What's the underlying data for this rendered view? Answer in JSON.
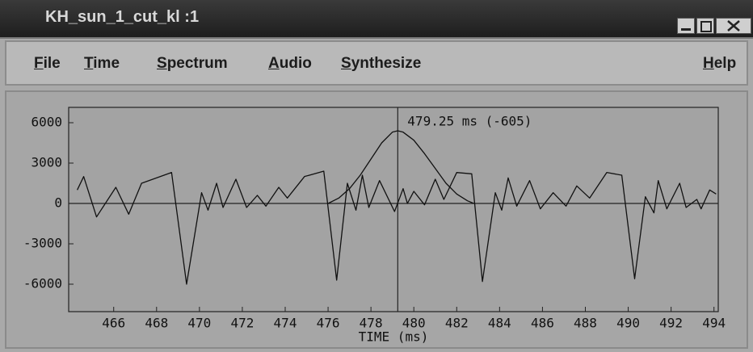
{
  "window": {
    "title": "KH_sun_1_cut_kl :1"
  },
  "menu": {
    "items": [
      "File",
      "Time",
      "Spectrum",
      "Audio",
      "Synthesize"
    ],
    "help": "Help"
  },
  "chart_data": {
    "type": "line",
    "xlabel": "TIME (ms)",
    "xlim": [
      463.9,
      494.2
    ],
    "ylim": [
      -8040,
      7140
    ],
    "xticks": [
      466,
      468,
      470,
      472,
      474,
      476,
      478,
      480,
      482,
      484,
      486,
      488,
      490,
      492,
      494
    ],
    "yticks": [
      6000,
      3000,
      0,
      -3000,
      -6000
    ],
    "cursor": {
      "x": 479.25,
      "label": "479.25 ms (-605)"
    },
    "series": [
      {
        "color": "#111111",
        "x": [
          464.3,
          464.6,
          465.2,
          466.1,
          466.7,
          467.3,
          468.7,
          469.4,
          470.1,
          470.4,
          470.8,
          471.1,
          471.7,
          472.2,
          472.7,
          473.1,
          473.7,
          474.1,
          474.9,
          475.8,
          476.4,
          476.9,
          477.3,
          477.6,
          477.9,
          478.4,
          479.1,
          479.5,
          479.7,
          480.0,
          480.5,
          481.0,
          481.4,
          482.0,
          482.7,
          483.2,
          483.8,
          484.1,
          484.4,
          484.8,
          485.4,
          485.9,
          486.5,
          487.1,
          487.6,
          488.2,
          489.0,
          489.7,
          490.3,
          490.8,
          491.2,
          491.4,
          491.8,
          492.4,
          492.7,
          493.2,
          493.4,
          493.8,
          494.1
        ],
        "values": [
          1000,
          2000,
          -1000,
          1200,
          -800,
          1500,
          2300,
          -6000,
          800,
          -500,
          1500,
          -300,
          1800,
          -300,
          600,
          -200,
          1200,
          400,
          2000,
          2400,
          -5700,
          1500,
          -500,
          2100,
          -300,
          1700,
          -600,
          1100,
          0,
          900,
          -100,
          1800,
          300,
          2300,
          2200,
          -5800,
          800,
          -500,
          1900,
          -200,
          1700,
          -400,
          800,
          -200,
          1300,
          400,
          2300,
          2100,
          -5600,
          500,
          -700,
          1700,
          -400,
          1500,
          -300,
          300,
          -400,
          1000,
          700
        ]
      },
      {
        "color": "#111111",
        "x": [
          476.0,
          476.5,
          477.0,
          477.5,
          478.0,
          478.5,
          479.0,
          479.25,
          479.5,
          480.0,
          480.5,
          481.0,
          481.5,
          482.0,
          482.5,
          482.8
        ],
        "values": [
          0,
          400,
          1100,
          2100,
          3300,
          4500,
          5300,
          5400,
          5300,
          4700,
          3700,
          2600,
          1500,
          700,
          200,
          0
        ]
      }
    ]
  }
}
